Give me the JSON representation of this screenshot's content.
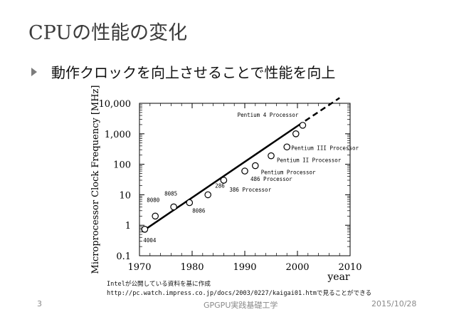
{
  "slide": {
    "title": "CPUの性能の変化",
    "bullet": "動作クロックを向上させることで性能を向上",
    "note_line1": "Intelが公開している資料を基に作成",
    "note_line2": "http://pc.watch.impress.co.jp/docs/2003/0227/kaigai01.htmで見ることができる",
    "footer_page": "3",
    "footer_center": "GPGPU実践基礎工学",
    "footer_date": "2015/10/28"
  },
  "chart_data": {
    "type": "scatter",
    "ylabel": "Microprocessor Clock Frequency [MHz]",
    "xlabel": "year",
    "xlim": [
      1970,
      2010
    ],
    "ylim": [
      0.1,
      10000
    ],
    "y_scale": "log",
    "x_ticks": [
      "1970",
      "1980",
      "1990",
      "2000",
      "2010"
    ],
    "y_ticks": [
      {
        "value": 10000,
        "label": "10,000"
      },
      {
        "value": 1000,
        "label": "1,000"
      },
      {
        "value": 100,
        "label": "100"
      },
      {
        "value": 10,
        "label": "10"
      },
      {
        "value": 1,
        "label": "1"
      },
      {
        "value": 0.1,
        "label": "0.1"
      }
    ],
    "points": [
      {
        "year": 1971,
        "mhz": 0.74,
        "label": "4004"
      },
      {
        "year": 1973,
        "mhz": 2,
        "label": "8080"
      },
      {
        "year": 1976.5,
        "mhz": 4,
        "label": "8085"
      },
      {
        "year": 1979.5,
        "mhz": 5.5,
        "label": "8086"
      },
      {
        "year": 1983,
        "mhz": 10,
        "label": "286"
      },
      {
        "year": 1986,
        "mhz": 30,
        "label": "386 Processor"
      },
      {
        "year": 1990,
        "mhz": 60,
        "label": "486 Processor"
      },
      {
        "year": 1992,
        "mhz": 90,
        "label": "Pentium Processor"
      },
      {
        "year": 1995,
        "mhz": 190,
        "label": "Pentium II Processor"
      },
      {
        "year": 1998,
        "mhz": 370,
        "label": "Pentium III Processor"
      },
      {
        "year": 1999.7,
        "mhz": 1000,
        "label": ""
      },
      {
        "year": 2001,
        "mhz": 1900,
        "label": "Pentium 4 Processor"
      }
    ],
    "trend_solid": [
      [
        1970.5,
        0.62
      ],
      [
        2000,
        1800
      ]
    ],
    "trend_dashed": [
      [
        2000,
        1800
      ],
      [
        2008,
        15000
      ]
    ],
    "grid": false,
    "legend": "none"
  }
}
